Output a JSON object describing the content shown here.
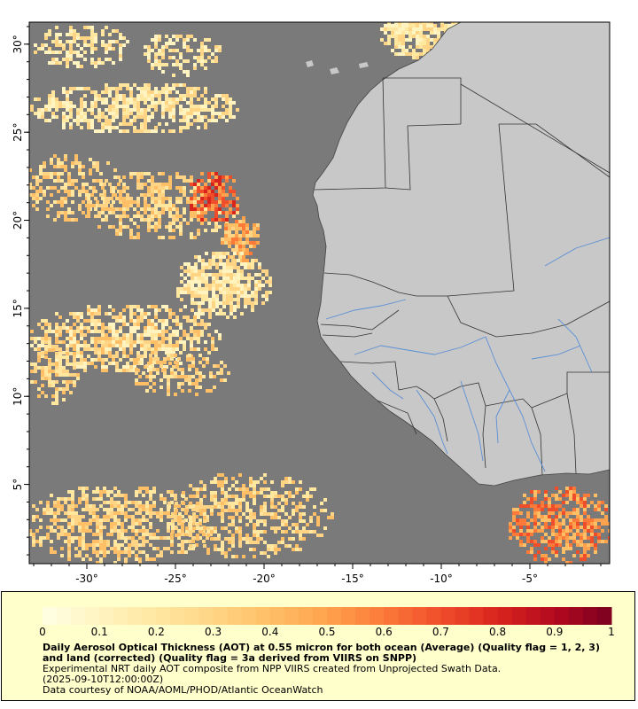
{
  "map": {
    "lon_range": [
      -33.25,
      -0.5
    ],
    "lat_range": [
      0.5,
      31.25
    ],
    "x_ticks": [
      {
        "value": -30,
        "label": "-30°"
      },
      {
        "value": -25,
        "label": "-25°"
      },
      {
        "value": -20,
        "label": "-20°"
      },
      {
        "value": -15,
        "label": "-15°"
      },
      {
        "value": -10,
        "label": "-10°"
      },
      {
        "value": -5,
        "label": "-5°"
      }
    ],
    "y_ticks": [
      {
        "value": 5,
        "label": "5°"
      },
      {
        "value": 10,
        "label": "10°"
      },
      {
        "value": 15,
        "label": "15°"
      },
      {
        "value": 20,
        "label": "20°"
      },
      {
        "value": 25,
        "label": "25°"
      },
      {
        "value": 30,
        "label": "30°"
      }
    ],
    "colors": {
      "ocean_nodata": "#7a7a7a",
      "land": "#c8c8c8",
      "borders": "#333333",
      "rivers": "#5b8fd6"
    }
  },
  "colorbar": {
    "min": 0,
    "max": 1,
    "tick_labels": [
      "0",
      "0.1",
      "0.2",
      "0.3",
      "0.4",
      "0.5",
      "0.6",
      "0.7",
      "0.8",
      "0.9",
      "1"
    ],
    "colors": [
      "#ffffe6",
      "#fff3c0",
      "#ffe7a0",
      "#ffd585",
      "#ffbf66",
      "#ffa24d",
      "#fb7a3a",
      "#f04d2a",
      "#d9241e",
      "#b3081f",
      "#7a0020"
    ]
  },
  "legend": {
    "title": "Daily Aerosol Optical Thickness (AOT) at 0.55 micron for both ocean (Average) (Quality flag = 1, 2, 3) and land (corrected) (Quality flag = 3a derived from VIIRS on SNPP)",
    "line1": "Experimental NRT daily AOT composite from NPP VIIRS created from Unprojected Swath Data.",
    "line2": "(2025-09-10T12:00:00Z)",
    "line3": "Data courtesy of NOAA/AOML/PHOD/Atlantic OceanWatch"
  }
}
